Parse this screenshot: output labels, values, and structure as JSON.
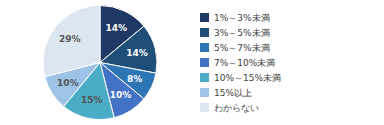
{
  "chart_data": {
    "type": "pie",
    "categories": [
      "1%～3%未満",
      "3%～5%未満",
      "5%～7%未満",
      "7%～10%未満",
      "10%～15%未満",
      "15%以上",
      "わからない"
    ],
    "values": [
      14,
      14,
      8,
      10,
      15,
      10,
      29
    ],
    "value_labels": [
      "14%",
      "14%",
      "8%",
      "10%",
      "15%",
      "10%",
      "29%"
    ],
    "colors": [
      "#1f3864",
      "#1f4e79",
      "#2e75b6",
      "#4472c4",
      "#4bacc6",
      "#9dc3e6",
      "#dce6f1"
    ],
    "data_labels": true,
    "legend": "right"
  }
}
